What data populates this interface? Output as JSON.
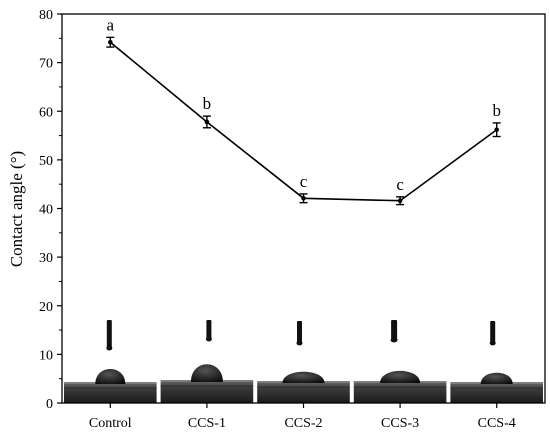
{
  "chart_data": {
    "type": "line",
    "categories": [
      "Control",
      "CCS-1",
      "CCS-2",
      "CCS-3",
      "CCS-4"
    ],
    "values": [
      74.2,
      57.8,
      42.1,
      41.6,
      56.2
    ],
    "errors": [
      1.0,
      1.2,
      0.9,
      0.8,
      1.4
    ],
    "significance_letters": [
      "a",
      "b",
      "c",
      "c",
      "b"
    ],
    "ylabel": "Contact angle (°)",
    "xlabel": "",
    "ylim": [
      0,
      80
    ],
    "yticks": [
      0,
      10,
      20,
      30,
      40,
      50,
      60,
      70,
      80
    ],
    "grid": false,
    "inset_images": "water droplet contact angle photographs below each category"
  }
}
